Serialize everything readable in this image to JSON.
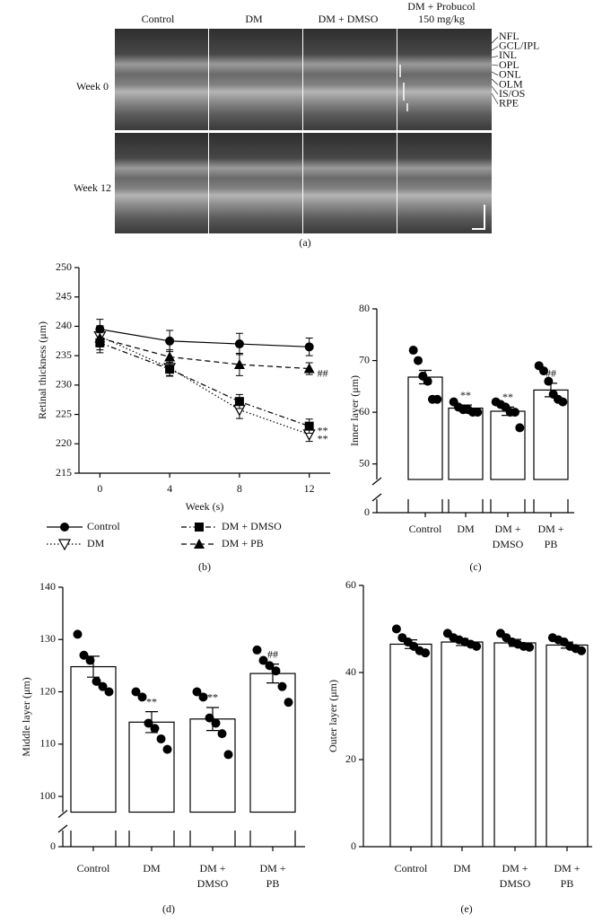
{
  "figure_a": {
    "columns": [
      [
        "Control"
      ],
      [
        "DM"
      ],
      [
        "DM + DMSO"
      ],
      [
        "DM + Probucol",
        "150 mg/kg"
      ]
    ],
    "rows": [
      "Week 0",
      "Week 12"
    ],
    "layers": [
      "NFL",
      "GCL/IPL",
      "INL",
      "OPL",
      "ONL",
      "OLM",
      "IS/OS",
      "RPE"
    ],
    "caption": "(a)"
  },
  "chart_data": [
    {
      "type": "line",
      "caption": "(b)",
      "ylabel": "Retinal thickness (μm)",
      "xlabel": "Week (s)",
      "x": [
        0,
        4,
        8,
        12
      ],
      "xlim": [
        -1.2,
        13.2
      ],
      "xticks": [
        0,
        4,
        8,
        12
      ],
      "ylim": [
        215,
        250
      ],
      "yticks": [
        215,
        220,
        225,
        230,
        235,
        240,
        245,
        250
      ],
      "legend": "bottom",
      "series": [
        {
          "name": "Control",
          "color": "#000000",
          "marker": "circle",
          "dash": "solid",
          "values": [
            239.5,
            237.5,
            237,
            236.5
          ],
          "errors": [
            1.7,
            1.8,
            1.8,
            1.5
          ]
        },
        {
          "name": "DM",
          "color": "#000000",
          "marker": "triangle-down-open",
          "dash": "dotted",
          "values": [
            238.3,
            232.9,
            225.8,
            221.6
          ],
          "errors": [
            1.8,
            1.3,
            1.5,
            1.2
          ],
          "end_label": "**"
        },
        {
          "name": "DM + DMSO",
          "color": "#000000",
          "marker": "square",
          "dash": "dashdot",
          "values": [
            237.2,
            232.7,
            227.2,
            223
          ],
          "errors": [
            1.7,
            1.2,
            1.2,
            1.2
          ],
          "end_label": "**"
        },
        {
          "name": "DM + PB",
          "color": "#000000",
          "marker": "triangle",
          "dash": "dashed",
          "values": [
            238,
            234.8,
            233.5,
            232.8
          ],
          "errors": [
            2,
            1.2,
            1.9,
            1
          ],
          "end_label": "##"
        }
      ]
    },
    {
      "type": "bar",
      "caption": "(c)",
      "ylabel": "Inner layer (μm)",
      "categories": [
        "Control",
        "DM",
        [
          "DM +",
          "DMSO"
        ],
        [
          "DM +",
          "PB"
        ]
      ],
      "values": [
        66.8,
        60.8,
        60.2,
        64.3
      ],
      "errors": [
        1.3,
        0.6,
        0.8,
        1.3
      ],
      "value_annotations": [
        null,
        "**",
        "**",
        "##"
      ],
      "points": [
        [
          72,
          70,
          67,
          66,
          62.5,
          62.5
        ],
        [
          62,
          61,
          60.5,
          60.5,
          60,
          60
        ],
        [
          62,
          61.5,
          61,
          60,
          60,
          57
        ],
        [
          69,
          68,
          66,
          63.5,
          62.5,
          62
        ]
      ],
      "ylim": [
        0,
        80
      ],
      "yticks": [
        0,
        50,
        60,
        70,
        80
      ],
      "axis_break": [
        3,
        47
      ],
      "color": "#ffffff",
      "point_color": "#000000"
    },
    {
      "type": "bar",
      "caption": "(d)",
      "ylabel": "Middle layer (μm)",
      "categories": [
        "Control",
        "DM",
        [
          "DM +",
          "DMSO"
        ],
        [
          "DM +",
          "PB"
        ]
      ],
      "values": [
        124.8,
        114.2,
        114.8,
        123.5
      ],
      "errors": [
        2,
        2,
        2.2,
        1.8
      ],
      "value_annotations": [
        null,
        "**",
        "**",
        "##"
      ],
      "points": [
        [
          131,
          127,
          126,
          122,
          121,
          120
        ],
        [
          120,
          119,
          114,
          113,
          111,
          109
        ],
        [
          120,
          119,
          115,
          114,
          112,
          108
        ],
        [
          128,
          126,
          125,
          124,
          121,
          118
        ]
      ],
      "ylim": [
        0,
        140
      ],
      "yticks": [
        0,
        100,
        110,
        120,
        130,
        140
      ],
      "axis_break": [
        3,
        97
      ],
      "color": "#ffffff",
      "point_color": "#000000"
    },
    {
      "type": "bar",
      "caption": "(e)",
      "ylabel": "Outer layer (μm)",
      "categories": [
        "Control",
        "DM",
        [
          "DM +",
          "DMSO"
        ],
        [
          "DM +",
          "PB"
        ]
      ],
      "values": [
        46.5,
        47,
        46.8,
        46.3
      ],
      "errors": [
        1,
        0.8,
        0.8,
        0.7
      ],
      "points": [
        [
          50,
          48,
          47,
          46,
          45,
          44.5
        ],
        [
          49,
          48,
          47.5,
          47,
          46.5,
          46
        ],
        [
          49,
          48,
          47,
          46.5,
          46,
          45.8
        ],
        [
          48,
          47.5,
          47,
          46,
          45.5,
          45
        ]
      ],
      "ylim": [
        0,
        60
      ],
      "yticks": [
        0,
        20,
        40,
        60
      ],
      "color": "#ffffff",
      "point_color": "#000000"
    }
  ]
}
